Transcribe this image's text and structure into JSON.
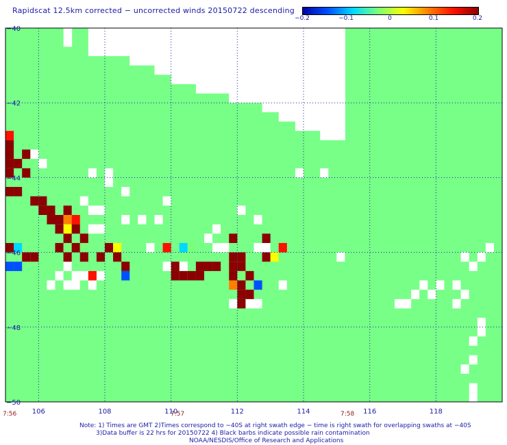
{
  "title": "Rapidscat 12.5km corrected − uncorrected winds 20150722 descending",
  "colorbar": {
    "ticks": [
      "−0.2",
      "−0.1",
      "0",
      "0.1",
      "0.2"
    ],
    "range": [
      -0.2,
      0.2
    ],
    "colors": [
      "#0000a0",
      "#0050ff",
      "#00d8ff",
      "#7aff7a",
      "#f8ff00",
      "#ff8000",
      "#ff1000",
      "#8b0000"
    ]
  },
  "chart_data": {
    "type": "heatmap",
    "title": "Rapidscat 12.5km corrected − uncorrected winds 20150722 descending",
    "xlim": [
      105,
      120
    ],
    "ylim": [
      -50,
      -40
    ],
    "xticks": [
      "106",
      "108",
      "110",
      "112",
      "114",
      "116",
      "118"
    ],
    "yticks": [
      "−40",
      "−42",
      "−44",
      "−46",
      "−48",
      "−50"
    ],
    "grid": true,
    "background_color": "#77ff88",
    "missing_color": "#ffffff",
    "cell_size_deg": 0.25,
    "missing_swath_edge": [
      [
        106.75,
        -40.25
      ],
      [
        108.25,
        -40.25
      ],
      [
        107.5,
        -40.5
      ],
      [
        107.75,
        -40.5
      ],
      [
        108.0,
        -40.5
      ],
      [
        108.25,
        -40.5
      ],
      [
        108.5,
        -40.5
      ],
      [
        108.75,
        -40.75
      ],
      [
        109.0,
        -40.75
      ],
      [
        109.25,
        -40.75
      ],
      [
        109.5,
        -41.0
      ],
      [
        109.75,
        -41.0
      ],
      [
        110.0,
        -41.25
      ],
      [
        110.25,
        -41.25
      ],
      [
        110.5,
        -41.25
      ],
      [
        110.75,
        -41.5
      ],
      [
        111.0,
        -41.5
      ],
      [
        111.25,
        -41.5
      ],
      [
        111.5,
        -41.5
      ],
      [
        111.75,
        -41.75
      ],
      [
        112.0,
        -41.75
      ],
      [
        112.25,
        -41.75
      ],
      [
        112.5,
        -41.75
      ],
      [
        112.75,
        -42.0
      ],
      [
        113.0,
        -42.0
      ],
      [
        113.25,
        -42.25
      ],
      [
        113.5,
        -42.25
      ],
      [
        113.75,
        -42.5
      ],
      [
        114.0,
        -42.5
      ],
      [
        114.25,
        -42.5
      ],
      [
        114.5,
        -42.75
      ],
      [
        114.75,
        -42.75
      ],
      [
        115.0,
        -42.75
      ]
    ],
    "missing_cells": [
      [
        105.75,
        -43.25
      ],
      [
        106.0,
        -43.5
      ],
      [
        107.5,
        -43.75
      ],
      [
        108.0,
        -43.75
      ],
      [
        113.75,
        -43.75
      ],
      [
        114.5,
        -43.75
      ],
      [
        108.0,
        -44.0
      ],
      [
        108.5,
        -44.25
      ],
      [
        109.75,
        -44.5
      ],
      [
        107.25,
        -44.5
      ],
      [
        107.5,
        -44.75
      ],
      [
        107.75,
        -44.75
      ],
      [
        112.0,
        -44.75
      ],
      [
        112.5,
        -45.0
      ],
      [
        108.5,
        -45.0
      ],
      [
        109.0,
        -45.0
      ],
      [
        109.5,
        -45.0
      ],
      [
        107.5,
        -45.25
      ],
      [
        107.75,
        -45.25
      ],
      [
        111.25,
        -45.25
      ],
      [
        111.0,
        -45.5
      ],
      [
        111.25,
        -45.75
      ],
      [
        111.5,
        -45.75
      ],
      [
        109.25,
        -45.75
      ],
      [
        112.5,
        -45.75
      ],
      [
        112.75,
        -45.75
      ],
      [
        115.0,
        -46.0
      ],
      [
        118.75,
        -46.0
      ],
      [
        119.0,
        -46.25
      ],
      [
        119.25,
        -46.0
      ],
      [
        119.5,
        -45.75
      ],
      [
        109.75,
        -46.25
      ],
      [
        110.25,
        -46.25
      ],
      [
        106.75,
        -46.25
      ],
      [
        107.0,
        -46.5
      ],
      [
        106.5,
        -46.5
      ],
      [
        107.25,
        -46.5
      ],
      [
        106.25,
        -46.75
      ],
      [
        106.75,
        -46.75
      ],
      [
        107.0,
        -46.75
      ],
      [
        107.75,
        -46.5
      ],
      [
        107.5,
        -46.75
      ],
      [
        113.25,
        -46.75
      ],
      [
        117.5,
        -46.75
      ],
      [
        117.75,
        -47.0
      ],
      [
        118.0,
        -46.75
      ],
      [
        118.5,
        -46.75
      ],
      [
        118.75,
        -47.0
      ],
      [
        117.25,
        -47.0
      ],
      [
        111.75,
        -47.25
      ],
      [
        112.25,
        -47.25
      ],
      [
        112.5,
        -47.25
      ],
      [
        116.75,
        -47.25
      ],
      [
        117.0,
        -47.25
      ],
      [
        118.5,
        -47.25
      ],
      [
        119.25,
        -47.75
      ],
      [
        119.25,
        -48.0
      ],
      [
        119.0,
        -48.25
      ],
      [
        119.0,
        -48.75
      ],
      [
        118.75,
        -49.0
      ],
      [
        119.0,
        -49.5
      ],
      [
        119.0,
        -49.75
      ],
      [
        108.0,
        -50.0
      ],
      [
        109.0,
        -50.0
      ]
    ],
    "value_cells": [
      [
        105.0,
        -42.75,
        0.15
      ],
      [
        105.0,
        -43.0,
        0.2
      ],
      [
        105.0,
        -43.25,
        0.2
      ],
      [
        105.0,
        -43.5,
        0.2
      ],
      [
        105.0,
        -43.75,
        0.2
      ],
      [
        105.5,
        -43.25,
        0.2
      ],
      [
        105.25,
        -43.5,
        0.2
      ],
      [
        105.5,
        -43.75,
        0.2
      ],
      [
        105.0,
        -44.25,
        0.2
      ],
      [
        105.25,
        -44.25,
        0.2
      ],
      [
        105.75,
        -44.5,
        0.2
      ],
      [
        106.0,
        -44.5,
        0.2
      ],
      [
        106.25,
        -44.75,
        0.2
      ],
      [
        106.0,
        -44.75,
        0.2
      ],
      [
        106.25,
        -45.0,
        0.2
      ],
      [
        106.5,
        -45.0,
        0.2
      ],
      [
        106.75,
        -44.75,
        0.2
      ],
      [
        106.75,
        -45.0,
        0.1
      ],
      [
        107.0,
        -45.0,
        0.15
      ],
      [
        106.75,
        -45.25,
        0.05
      ],
      [
        106.5,
        -45.25,
        0.2
      ],
      [
        107.0,
        -45.25,
        0.2
      ],
      [
        106.75,
        -45.5,
        0.2
      ],
      [
        107.25,
        -45.5,
        0.2
      ],
      [
        105.25,
        -45.75,
        -0.1
      ],
      [
        105.0,
        -45.75,
        0.2
      ],
      [
        105.5,
        -46.0,
        0.2
      ],
      [
        105.75,
        -46.0,
        0.2
      ],
      [
        106.5,
        -45.75,
        0.2
      ],
      [
        106.75,
        -45.75,
        -0.05
      ],
      [
        107.0,
        -45.75,
        0.2
      ],
      [
        107.25,
        -45.75,
        -0.05
      ],
      [
        108.0,
        -45.75,
        0.2
      ],
      [
        108.25,
        -45.75,
        0.05
      ],
      [
        109.75,
        -45.75,
        0.15
      ],
      [
        110.25,
        -45.75,
        -0.1
      ],
      [
        110.5,
        -45.75,
        -0.05
      ],
      [
        106.75,
        -46.0,
        0.2
      ],
      [
        107.25,
        -46.0,
        0.2
      ],
      [
        107.75,
        -46.0,
        0.2
      ],
      [
        108.25,
        -46.0,
        0.2
      ],
      [
        105.25,
        -46.25,
        -0.15
      ],
      [
        105.0,
        -46.25,
        -0.15
      ],
      [
        108.5,
        -46.25,
        0.2
      ],
      [
        108.5,
        -46.5,
        -0.15
      ],
      [
        107.5,
        -46.5,
        0.15
      ],
      [
        110.0,
        -46.5,
        0.2
      ],
      [
        110.25,
        -46.5,
        0.2
      ],
      [
        110.5,
        -46.5,
        0.2
      ],
      [
        110.75,
        -46.25,
        0.2
      ],
      [
        111.0,
        -46.25,
        0.2
      ],
      [
        111.25,
        -46.25,
        0.2
      ],
      [
        110.0,
        -46.25,
        0.2
      ],
      [
        110.75,
        -46.5,
        0.2
      ],
      [
        111.75,
        -46.0,
        0.2
      ],
      [
        111.75,
        -46.25,
        0.2
      ],
      [
        112.0,
        -46.0,
        0.2
      ],
      [
        112.0,
        -46.25,
        0.2
      ],
      [
        111.75,
        -46.5,
        0.2
      ],
      [
        112.0,
        -46.5,
        -0.05
      ],
      [
        112.25,
        -46.5,
        0.2
      ],
      [
        111.75,
        -46.75,
        0.1
      ],
      [
        112.0,
        -46.75,
        0.2
      ],
      [
        112.5,
        -46.75,
        -0.15
      ],
      [
        112.0,
        -47.0,
        0.2
      ],
      [
        112.25,
        -47.0,
        0.2
      ],
      [
        112.0,
        -47.25,
        0.2
      ],
      [
        111.75,
        -45.5,
        0.2
      ],
      [
        112.75,
        -46.0,
        0.2
      ],
      [
        112.75,
        -45.5,
        0.2
      ],
      [
        113.25,
        -45.75,
        0.15
      ],
      [
        113.0,
        -46.0,
        0.05
      ]
    ]
  },
  "time_labels": [
    "7:56",
    "7:57",
    "7:58"
  ],
  "notes": [
    "Note: 1) Times are GMT 2)Times correspond to −40S at right swath edge − time is right swath for overlapping swaths at −40S",
    "3)Data buffer is 22 hrs for 20150722 4) Black barbs indicate possible rain contamination",
    "NOAA/NESDIS/Office of Research and Applications"
  ]
}
